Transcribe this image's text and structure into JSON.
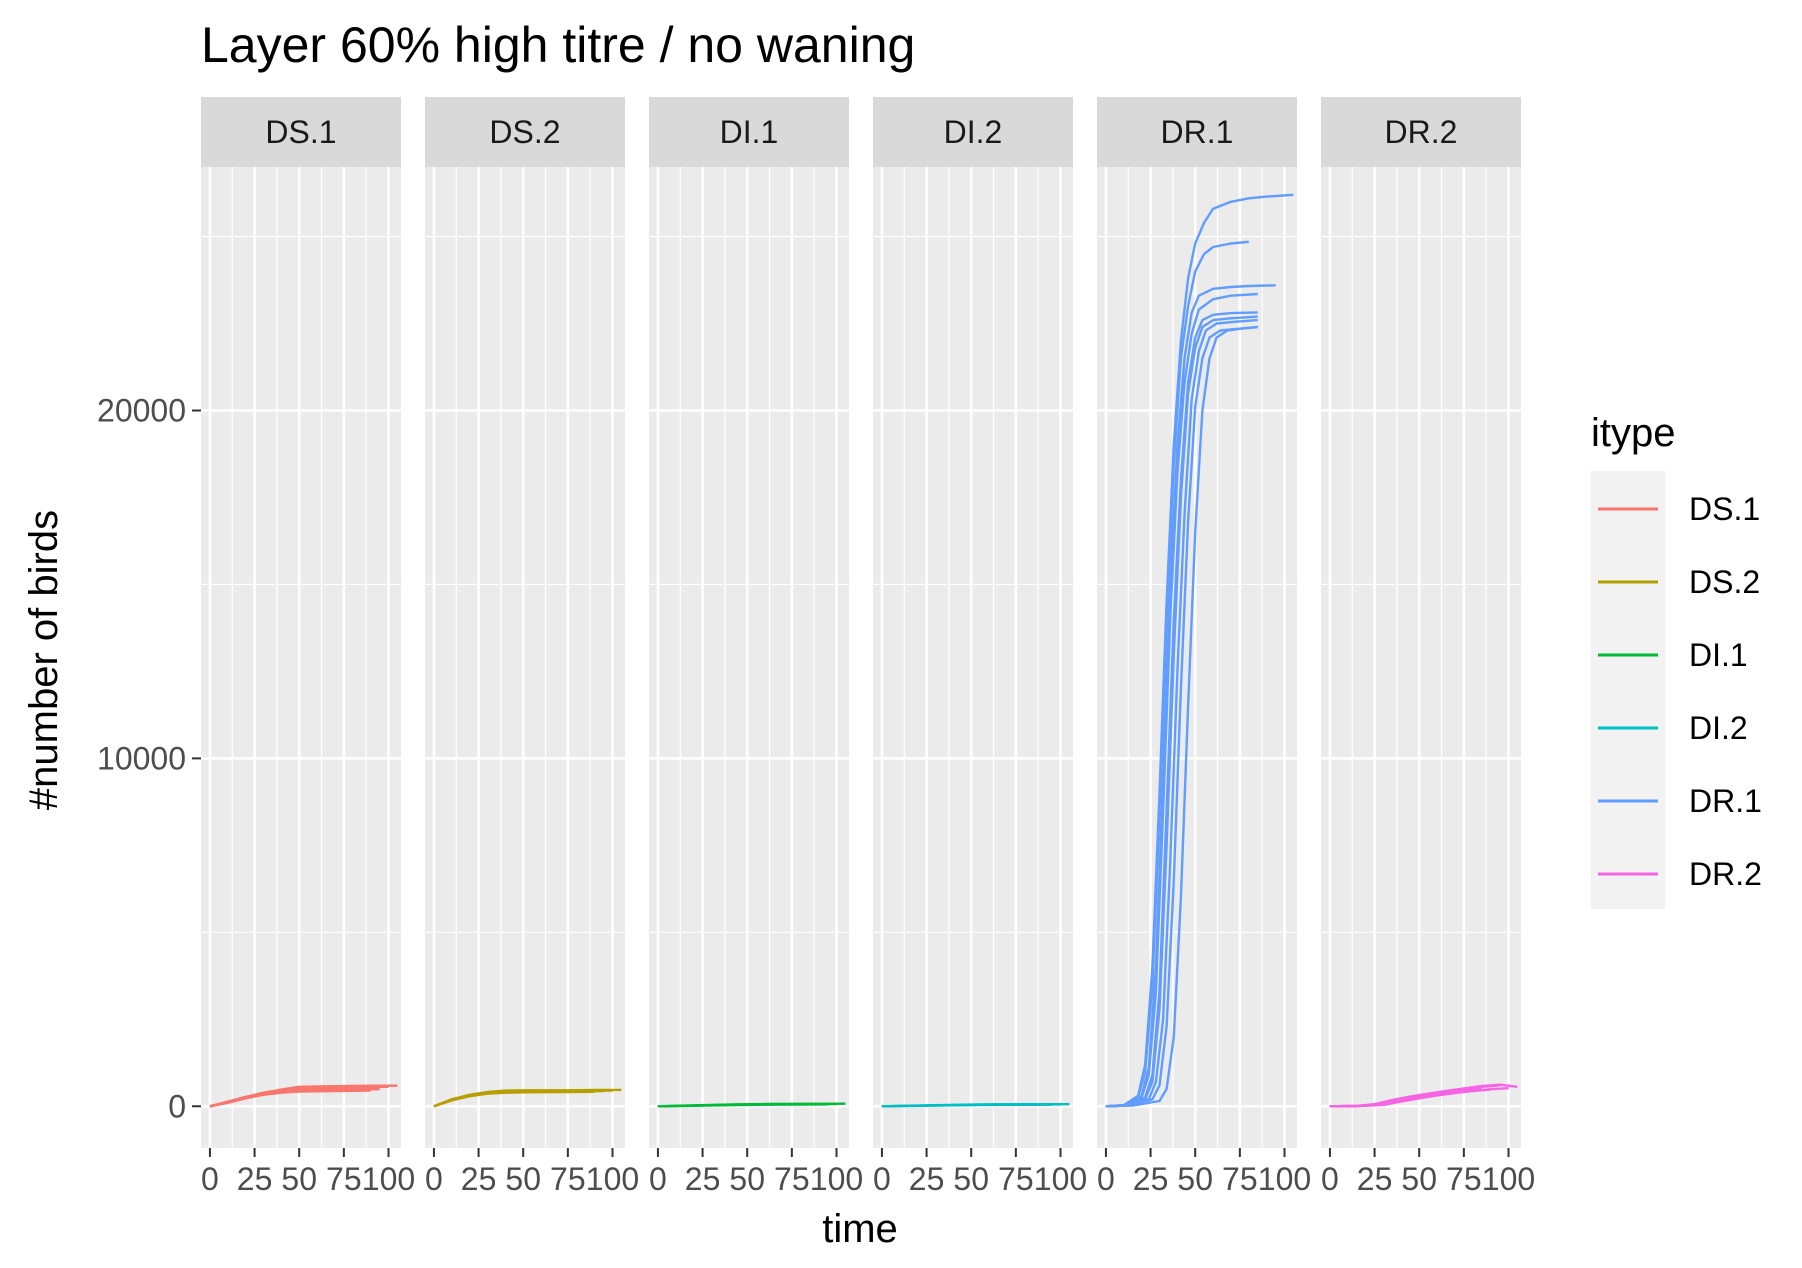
{
  "chart_data": {
    "type": "line",
    "title": "Layer 60% high titre / no waning",
    "xlabel": "time",
    "ylabel": "#number of birds",
    "xlim": [
      -5,
      107
    ],
    "ylim": [
      -1200,
      27000
    ],
    "x_ticks": [
      0,
      25,
      50,
      75,
      100
    ],
    "x_tick_labels": [
      "0",
      "25",
      "50",
      "75",
      "100"
    ],
    "y_ticks": [
      0,
      10000,
      20000
    ],
    "y_tick_labels": [
      "0",
      "10000",
      "20000"
    ],
    "grid": true,
    "legend_position": "right",
    "legend_title": "itype",
    "panels": [
      {
        "strip": "DS.1",
        "series_name": "DS.1",
        "color": "#F8766D",
        "runs": [
          {
            "x": [
              0,
              10,
              20,
              30,
              40,
              50,
              60,
              75,
              90,
              105
            ],
            "y": [
              0,
              120,
              260,
              380,
              480,
              560,
              570,
              580,
              590,
              590
            ]
          },
          {
            "x": [
              0,
              10,
              20,
              30,
              40,
              50,
              60,
              75,
              90,
              100
            ],
            "y": [
              0,
              130,
              270,
              390,
              470,
              530,
              540,
              550,
              560,
              560
            ]
          },
          {
            "x": [
              0,
              10,
              20,
              30,
              40,
              50,
              60,
              75,
              95
            ],
            "y": [
              0,
              110,
              240,
              360,
              450,
              500,
              510,
              520,
              530
            ]
          },
          {
            "x": [
              0,
              10,
              20,
              30,
              40,
              50,
              60,
              75,
              95
            ],
            "y": [
              0,
              115,
              250,
              350,
              420,
              460,
              470,
              480,
              490
            ]
          },
          {
            "x": [
              0,
              10,
              20,
              30,
              40,
              50,
              60,
              75,
              90
            ],
            "y": [
              0,
              100,
              230,
              330,
              390,
              420,
              430,
              440,
              450
            ]
          },
          {
            "x": [
              0,
              10,
              20,
              30,
              40,
              50,
              60,
              75,
              95
            ],
            "y": [
              0,
              125,
              265,
              370,
              440,
              480,
              490,
              500,
              510
            ]
          }
        ]
      },
      {
        "strip": "DS.2",
        "series_name": "DS.2",
        "color": "#B79F00",
        "runs": [
          {
            "x": [
              0,
              10,
              20,
              30,
              40,
              50,
              60,
              75,
              90,
              105
            ],
            "y": [
              0,
              200,
              330,
              410,
              450,
              460,
              460,
              460,
              470,
              470
            ]
          },
          {
            "x": [
              0,
              10,
              20,
              30,
              40,
              50,
              60,
              75,
              95
            ],
            "y": [
              0,
              190,
              320,
              400,
              430,
              440,
              445,
              450,
              455
            ]
          },
          {
            "x": [
              0,
              10,
              20,
              30,
              40,
              50,
              60,
              75,
              95
            ],
            "y": [
              0,
              180,
              300,
              380,
              410,
              420,
              425,
              430,
              435
            ]
          },
          {
            "x": [
              0,
              10,
              20,
              30,
              40,
              50,
              60,
              75,
              90
            ],
            "y": [
              0,
              170,
              290,
              360,
              390,
              400,
              405,
              410,
              415
            ]
          },
          {
            "x": [
              0,
              10,
              20,
              30,
              40,
              50,
              60,
              75,
              100
            ],
            "y": [
              0,
              185,
              310,
              390,
              420,
              430,
              435,
              440,
              450
            ]
          }
        ]
      },
      {
        "strip": "DI.1",
        "series_name": "DI.1",
        "color": "#00BA38",
        "runs": [
          {
            "x": [
              0,
              15,
              30,
              45,
              60,
              75,
              90,
              105
            ],
            "y": [
              0,
              20,
              40,
              55,
              65,
              70,
              72,
              74
            ]
          },
          {
            "x": [
              0,
              15,
              30,
              45,
              60,
              75,
              90,
              100
            ],
            "y": [
              0,
              15,
              30,
              45,
              55,
              60,
              62,
              64
            ]
          },
          {
            "x": [
              0,
              15,
              30,
              45,
              60,
              75,
              95
            ],
            "y": [
              0,
              10,
              25,
              35,
              45,
              50,
              52
            ]
          }
        ]
      },
      {
        "strip": "DI.2",
        "series_name": "DI.2",
        "color": "#00BFC4",
        "runs": [
          {
            "x": [
              0,
              15,
              30,
              45,
              60,
              75,
              90,
              105
            ],
            "y": [
              0,
              15,
              30,
              45,
              55,
              60,
              60,
              60
            ]
          },
          {
            "x": [
              0,
              15,
              30,
              45,
              60,
              75,
              90,
              100
            ],
            "y": [
              0,
              10,
              25,
              35,
              45,
              50,
              52,
              54
            ]
          },
          {
            "x": [
              0,
              15,
              30,
              45,
              60,
              75,
              95
            ],
            "y": [
              0,
              12,
              22,
              30,
              38,
              42,
              44
            ]
          }
        ]
      },
      {
        "strip": "DR.1",
        "series_name": "DR.1",
        "color": "#619CFF",
        "runs": [
          {
            "x": [
              0,
              10,
              18,
              22,
              26,
              30,
              34,
              38,
              42,
              46,
              50,
              55,
              60,
              70,
              80,
              90,
              105
            ],
            "y": [
              0,
              30,
              300,
              1200,
              4000,
              9000,
              14500,
              19000,
              22000,
              23800,
              24800,
              25400,
              25800,
              26000,
              26100,
              26150,
              26200
            ]
          },
          {
            "x": [
              0,
              10,
              18,
              22,
              26,
              30,
              34,
              38,
              42,
              46,
              50,
              55,
              60,
              70,
              80
            ],
            "y": [
              0,
              30,
              250,
              1000,
              3500,
              8500,
              14000,
              18500,
              21500,
              23000,
              24000,
              24500,
              24700,
              24800,
              24850
            ]
          },
          {
            "x": [
              0,
              10,
              20,
              24,
              28,
              32,
              36,
              40,
              44,
              48,
              52,
              60,
              70,
              80,
              95
            ],
            "y": [
              0,
              30,
              300,
              1100,
              4000,
              9500,
              15000,
              19000,
              21500,
              22800,
              23300,
              23500,
              23550,
              23580,
              23600
            ]
          },
          {
            "x": [
              0,
              10,
              20,
              24,
              28,
              32,
              36,
              40,
              44,
              48,
              52,
              60,
              70,
              85
            ],
            "y": [
              0,
              25,
              250,
              900,
              3300,
              8500,
              14000,
              18200,
              20800,
              22200,
              22900,
              23200,
              23300,
              23350
            ]
          },
          {
            "x": [
              0,
              10,
              22,
              26,
              30,
              34,
              38,
              42,
              46,
              50,
              54,
              60,
              70,
              85
            ],
            "y": [
              0,
              20,
              250,
              900,
              3300,
              8500,
              14000,
              18000,
              20800,
              22100,
              22600,
              22750,
              22800,
              22820
            ]
          },
          {
            "x": [
              0,
              10,
              22,
              26,
              30,
              34,
              38,
              42,
              46,
              50,
              54,
              60,
              70,
              85
            ],
            "y": [
              0,
              20,
              200,
              700,
              2800,
              7500,
              13000,
              17500,
              20500,
              21800,
              22400,
              22600,
              22650,
              22700
            ]
          },
          {
            "x": [
              0,
              12,
              24,
              28,
              32,
              36,
              40,
              44,
              48,
              52,
              56,
              62,
              72,
              85
            ],
            "y": [
              0,
              20,
              200,
              700,
              2500,
              7000,
              12500,
              17000,
              20300,
              21700,
              22300,
              22500,
              22550,
              22600
            ]
          },
          {
            "x": [
              0,
              12,
              26,
              30,
              34,
              38,
              42,
              46,
              50,
              54,
              58,
              64,
              74,
              85
            ],
            "y": [
              0,
              20,
              200,
              600,
              2300,
              6500,
              12000,
              16800,
              20100,
              21500,
              22100,
              22300,
              22350,
              22400
            ]
          },
          {
            "x": [
              0,
              15,
              30,
              34,
              38,
              42,
              46,
              50,
              54,
              58,
              62,
              68,
              75,
              85
            ],
            "y": [
              0,
              20,
              150,
              500,
              2000,
              6000,
              11500,
              16500,
              20000,
              21500,
              22100,
              22300,
              22350,
              22400
            ]
          }
        ]
      },
      {
        "strip": "DR.2",
        "series_name": "DR.2",
        "color": "#F564E3",
        "runs": [
          {
            "x": [
              0,
              15,
              25,
              35,
              45,
              55,
              65,
              75,
              85,
              95,
              105
            ],
            "y": [
              0,
              10,
              60,
              180,
              280,
              360,
              440,
              510,
              580,
              620,
              560
            ]
          },
          {
            "x": [
              0,
              15,
              25,
              35,
              45,
              55,
              65,
              75,
              85,
              95
            ],
            "y": [
              0,
              10,
              50,
              160,
              260,
              340,
              420,
              490,
              560,
              600
            ]
          },
          {
            "x": [
              0,
              15,
              25,
              35,
              45,
              55,
              65,
              75,
              85
            ],
            "y": [
              0,
              10,
              40,
              140,
              240,
              320,
              400,
              470,
              580
            ]
          },
          {
            "x": [
              0,
              15,
              25,
              35,
              45,
              55,
              65,
              75,
              85
            ],
            "y": [
              0,
              8,
              35,
              120,
              220,
              300,
              380,
              450,
              520
            ]
          },
          {
            "x": [
              0,
              15,
              25,
              35,
              45,
              55,
              65,
              75,
              90
            ],
            "y": [
              0,
              6,
              30,
              110,
              200,
              280,
              350,
              420,
              480
            ]
          },
          {
            "x": [
              0,
              15,
              30,
              40,
              50,
              60,
              70,
              80,
              90,
              100
            ],
            "y": [
              0,
              5,
              40,
              140,
              230,
              310,
              380,
              440,
              490,
              520
            ]
          }
        ]
      }
    ]
  }
}
